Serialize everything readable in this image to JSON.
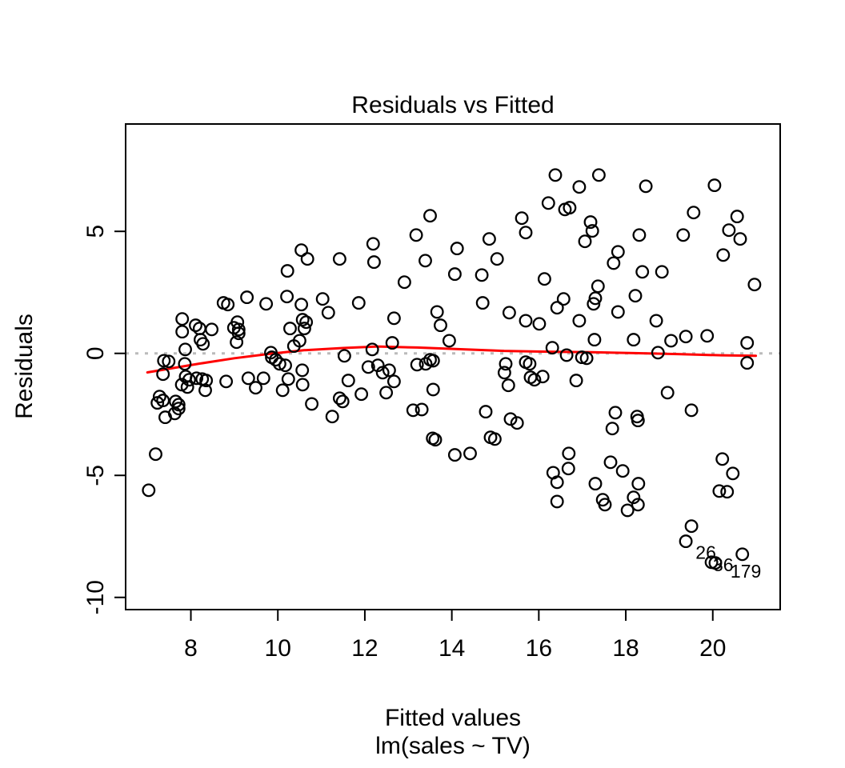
{
  "figure": {
    "title": "Residuals vs Fitted",
    "xlabel": "Fitted values",
    "xlabel_sub": "lm(sales ~ TV)",
    "ylabel": "Residuals"
  },
  "chart_data": {
    "type": "scatter",
    "title": "Residuals vs Fitted",
    "xlabel": "Fitted values",
    "xlabel_sub": "lm(sales ~ TV)",
    "ylabel": "Residuals",
    "xlim": [
      6.5,
      21.55
    ],
    "ylim": [
      -10.5,
      9.4
    ],
    "xticks": [
      8,
      10,
      12,
      14,
      16,
      18,
      20
    ],
    "yticks": [
      -10,
      -5,
      0,
      5
    ],
    "grid": false,
    "legend": "none",
    "marker": "open-circle",
    "colors": {
      "points": "#000000",
      "smoother": "#FF0000",
      "zero_line": "#BBBBBB",
      "box": "#000000"
    },
    "zero_line_y": 0,
    "smoother": [
      [
        7.0,
        -0.78
      ],
      [
        7.6,
        -0.6
      ],
      [
        8.2,
        -0.42
      ],
      [
        9.0,
        -0.2
      ],
      [
        9.8,
        -0.02
      ],
      [
        10.6,
        0.13
      ],
      [
        11.5,
        0.22
      ],
      [
        12.3,
        0.28
      ],
      [
        13.2,
        0.24
      ],
      [
        14.2,
        0.17
      ],
      [
        15.2,
        0.1
      ],
      [
        16.2,
        0.07
      ],
      [
        17.2,
        0.05
      ],
      [
        18.2,
        0.01
      ],
      [
        19.2,
        -0.03
      ],
      [
        20.2,
        -0.08
      ],
      [
        20.99,
        -0.1
      ]
    ],
    "points": [
      [
        10.54,
        4.23
      ],
      [
        10.68,
        3.87
      ],
      [
        10.22,
        3.38
      ],
      [
        11.42,
        3.87
      ],
      [
        16.38,
        7.31
      ],
      [
        16.22,
        6.16
      ],
      [
        16.6,
        5.9
      ],
      [
        15.61,
        5.54
      ],
      [
        15.7,
        4.95
      ],
      [
        13.5,
        5.64
      ],
      [
        13.18,
        4.85
      ],
      [
        12.19,
        4.49
      ],
      [
        12.21,
        3.74
      ],
      [
        13.39,
        3.8
      ],
      [
        14.12,
        4.3
      ],
      [
        14.86,
        4.69
      ],
      [
        15.04,
        3.87
      ],
      [
        14.07,
        3.25
      ],
      [
        14.69,
        3.21
      ],
      [
        12.91,
        2.92
      ],
      [
        16.13,
        3.05
      ],
      [
        17.38,
        7.31
      ],
      [
        16.93,
        6.82
      ],
      [
        18.46,
        6.85
      ],
      [
        20.04,
        6.89
      ],
      [
        16.71,
        5.97
      ],
      [
        17.19,
        5.38
      ],
      [
        17.23,
        5.02
      ],
      [
        17.06,
        4.59
      ],
      [
        19.56,
        5.77
      ],
      [
        20.56,
        5.61
      ],
      [
        20.37,
        5.05
      ],
      [
        20.63,
        4.69
      ],
      [
        18.31,
        4.85
      ],
      [
        19.32,
        4.85
      ],
      [
        20.24,
        4.03
      ],
      [
        17.82,
        4.16
      ],
      [
        17.72,
        3.7
      ],
      [
        18.38,
        3.34
      ],
      [
        18.83,
        3.34
      ],
      [
        17.36,
        2.75
      ],
      [
        20.96,
        2.82
      ],
      [
        8.75,
        2.07
      ],
      [
        8.85,
        2.0
      ],
      [
        9.29,
        2.3
      ],
      [
        9.73,
        2.03
      ],
      [
        10.21,
        2.33
      ],
      [
        10.54,
        2.0
      ],
      [
        11.03,
        2.23
      ],
      [
        11.16,
        1.67
      ],
      [
        7.8,
        1.41
      ],
      [
        7.8,
        0.89
      ],
      [
        8.11,
        1.15
      ],
      [
        8.2,
        1.02
      ],
      [
        8.48,
        0.98
      ],
      [
        9.07,
        1.28
      ],
      [
        8.99,
        1.05
      ],
      [
        9.1,
        0.98
      ],
      [
        9.1,
        0.82
      ],
      [
        9.05,
        0.46
      ],
      [
        8.22,
        0.56
      ],
      [
        8.28,
        0.39
      ],
      [
        7.87,
        0.16
      ],
      [
        10.28,
        1.02
      ],
      [
        10.57,
        1.38
      ],
      [
        10.65,
        1.28
      ],
      [
        10.61,
        1.02
      ],
      [
        10.5,
        0.52
      ],
      [
        10.37,
        0.3
      ],
      [
        9.84,
        0.03
      ],
      [
        9.86,
        -0.16
      ],
      [
        9.95,
        -0.26
      ],
      [
        10.04,
        -0.43
      ],
      [
        10.17,
        -0.49
      ],
      [
        7.38,
        -0.3
      ],
      [
        7.49,
        -0.33
      ],
      [
        7.36,
        -0.85
      ],
      [
        7.86,
        -0.43
      ],
      [
        7.88,
        -0.95
      ],
      [
        7.96,
        -1.08
      ],
      [
        7.92,
        -1.38
      ],
      [
        7.79,
        -1.28
      ],
      [
        8.13,
        -1.02
      ],
      [
        8.26,
        -1.05
      ],
      [
        8.35,
        -1.11
      ],
      [
        8.33,
        -1.51
      ],
      [
        8.81,
        -1.15
      ],
      [
        9.32,
        -1.02
      ],
      [
        9.49,
        -1.41
      ],
      [
        9.67,
        -1.02
      ],
      [
        10.11,
        -1.51
      ],
      [
        10.24,
        -1.05
      ],
      [
        10.56,
        -0.69
      ],
      [
        10.57,
        -1.28
      ],
      [
        10.78,
        -2.07
      ],
      [
        7.28,
        -1.77
      ],
      [
        7.36,
        -1.93
      ],
      [
        7.23,
        -2.03
      ],
      [
        7.65,
        -1.97
      ],
      [
        7.72,
        -2.1
      ],
      [
        7.72,
        -2.26
      ],
      [
        7.41,
        -2.62
      ],
      [
        7.63,
        -2.46
      ],
      [
        11.25,
        -2.59
      ],
      [
        11.42,
        -1.84
      ],
      [
        11.49,
        -1.97
      ],
      [
        11.53,
        -0.1
      ],
      [
        11.86,
        2.07
      ],
      [
        12.67,
        1.44
      ],
      [
        13.66,
        1.7
      ],
      [
        13.74,
        1.15
      ],
      [
        13.94,
        0.52
      ],
      [
        14.71,
        2.07
      ],
      [
        15.32,
        1.67
      ],
      [
        15.7,
        1.34
      ],
      [
        16.01,
        1.21
      ],
      [
        16.42,
        1.87
      ],
      [
        16.57,
        2.23
      ],
      [
        16.64,
        -0.07
      ],
      [
        12.17,
        0.16
      ],
      [
        12.63,
        0.43
      ],
      [
        12.08,
        -0.56
      ],
      [
        12.3,
        -0.49
      ],
      [
        12.41,
        -0.79
      ],
      [
        12.56,
        -0.69
      ],
      [
        13.2,
        -0.46
      ],
      [
        13.4,
        -0.43
      ],
      [
        13.5,
        -0.26
      ],
      [
        13.57,
        -0.3
      ],
      [
        12.67,
        -1.15
      ],
      [
        12.49,
        -1.61
      ],
      [
        11.62,
        -1.11
      ],
      [
        11.92,
        -1.67
      ],
      [
        13.11,
        -2.33
      ],
      [
        13.31,
        -2.3
      ],
      [
        13.57,
        -1.48
      ],
      [
        14.78,
        -2.39
      ],
      [
        15.35,
        -2.69
      ],
      [
        15.5,
        -2.85
      ],
      [
        14.89,
        -3.44
      ],
      [
        14.99,
        -3.51
      ],
      [
        13.56,
        -3.48
      ],
      [
        13.62,
        -3.54
      ],
      [
        15.24,
        -0.43
      ],
      [
        15.21,
        -0.79
      ],
      [
        15.3,
        -1.31
      ],
      [
        15.7,
        -0.36
      ],
      [
        15.79,
        -0.43
      ],
      [
        15.81,
        -0.98
      ],
      [
        15.9,
        -1.08
      ],
      [
        16.09,
        -0.95
      ],
      [
        16.31,
        0.23
      ],
      [
        17.3,
        2.26
      ],
      [
        17.26,
        2.03
      ],
      [
        17.82,
        1.7
      ],
      [
        18.22,
        2.36
      ],
      [
        16.93,
        1.34
      ],
      [
        18.7,
        1.34
      ],
      [
        17.28,
        0.56
      ],
      [
        18.18,
        0.56
      ],
      [
        19.04,
        0.52
      ],
      [
        19.38,
        0.69
      ],
      [
        19.87,
        0.72
      ],
      [
        20.79,
        0.43
      ],
      [
        18.74,
        0.03
      ],
      [
        16.99,
        -0.16
      ],
      [
        17.1,
        -0.2
      ],
      [
        20.79,
        -0.39
      ],
      [
        16.86,
        -1.11
      ],
      [
        18.96,
        -1.61
      ],
      [
        19.51,
        -2.33
      ],
      [
        17.76,
        -2.43
      ],
      [
        18.26,
        -2.59
      ],
      [
        18.28,
        -2.75
      ],
      [
        17.69,
        -3.08
      ],
      [
        7.19,
        -4.13
      ],
      [
        7.03,
        -5.61
      ],
      [
        14.07,
        -4.16
      ],
      [
        14.42,
        -4.1
      ],
      [
        16.33,
        -4.89
      ],
      [
        16.42,
        -5.28
      ],
      [
        16.42,
        -6.07
      ],
      [
        16.69,
        -4.1
      ],
      [
        16.68,
        -4.72
      ],
      [
        17.65,
        -4.46
      ],
      [
        17.93,
        -4.82
      ],
      [
        17.3,
        -5.34
      ],
      [
        18.29,
        -5.34
      ],
      [
        17.47,
        -6.0
      ],
      [
        17.52,
        -6.2
      ],
      [
        18.18,
        -5.9
      ],
      [
        18.28,
        -6.2
      ],
      [
        18.04,
        -6.43
      ],
      [
        20.22,
        -4.33
      ],
      [
        20.46,
        -4.92
      ],
      [
        20.15,
        -5.64
      ],
      [
        20.33,
        -5.67
      ],
      [
        19.51,
        -7.08
      ],
      [
        19.97,
        -8.56
      ]
    ],
    "labeled_points": [
      {
        "label": "26",
        "x": 19.38,
        "y": -7.7,
        "label_x": 19.84,
        "label_y": -8.16
      },
      {
        "label": "36",
        "x": 20.06,
        "y": -8.59,
        "label_x": 20.24,
        "label_y": -8.66
      },
      {
        "label": "179",
        "x": 20.68,
        "y": -8.23,
        "label_x": 20.76,
        "label_y": -8.92
      }
    ]
  }
}
